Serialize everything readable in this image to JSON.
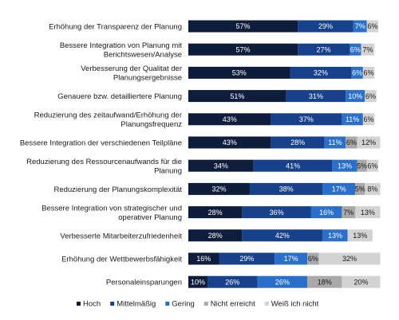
{
  "chart_data": {
    "type": "bar",
    "orientation": "horizontal",
    "stacked": true,
    "value_unit": "%",
    "categories": [
      [
        "Erhöhung der Transparenz der Planung"
      ],
      [
        "Bessere Integration von Planung mit",
        "Berichtswesen/Analyse"
      ],
      [
        "Verbesserung der Qualitat der",
        "Planungsergebnisse"
      ],
      [
        "Genauere bzw. detailliertere Planung"
      ],
      [
        "Reduzierung des zeitaufwand/Erhöhung der",
        "Planungsfrequenz"
      ],
      [
        "Bessere Integration der verschiedenen Teilpläne"
      ],
      [
        "Reduzierung des Ressourcenaufwands für die",
        "Planung"
      ],
      [
        "Reduzierung der Planungskomplexität"
      ],
      [
        "Bessere Integration von strategischer und",
        "operativer Planung"
      ],
      [
        "Verbesserte Mitarbeiterzufriedenheit"
      ],
      [
        "Erhöhung der Wettbewerbsfähigkeit"
      ],
      [
        "Personaleinsparungen"
      ]
    ],
    "series": [
      {
        "name": "Hoch",
        "color": "#0f1d3d",
        "label_color": "#ffffff",
        "values": [
          57,
          57,
          53,
          51,
          43,
          43,
          34,
          32,
          28,
          28,
          16,
          10
        ]
      },
      {
        "name": "Mittelmäßig",
        "color": "#17418a",
        "label_color": "#ffffff",
        "values": [
          29,
          27,
          32,
          31,
          37,
          28,
          41,
          38,
          36,
          42,
          29,
          26
        ]
      },
      {
        "name": "Gering",
        "color": "#2a6fc9",
        "label_color": "#ffffff",
        "values": [
          7,
          6,
          6,
          10,
          11,
          11,
          13,
          17,
          16,
          13,
          17,
          26
        ]
      },
      {
        "name": "Nicht erreicht",
        "color": "#a9a9a9",
        "label_color": "#1a1a1a",
        "values": [
          0,
          0,
          0,
          0,
          0,
          6,
          5,
          5,
          7,
          0,
          6,
          18
        ]
      },
      {
        "name": "Weiß ich nicht",
        "color": "#d3d3d3",
        "label_color": "#1a1a1a",
        "values": [
          6,
          7,
          6,
          6,
          6,
          12,
          6,
          8,
          13,
          13,
          32,
          20
        ]
      }
    ],
    "legend_position": "bottom",
    "grid": false
  }
}
